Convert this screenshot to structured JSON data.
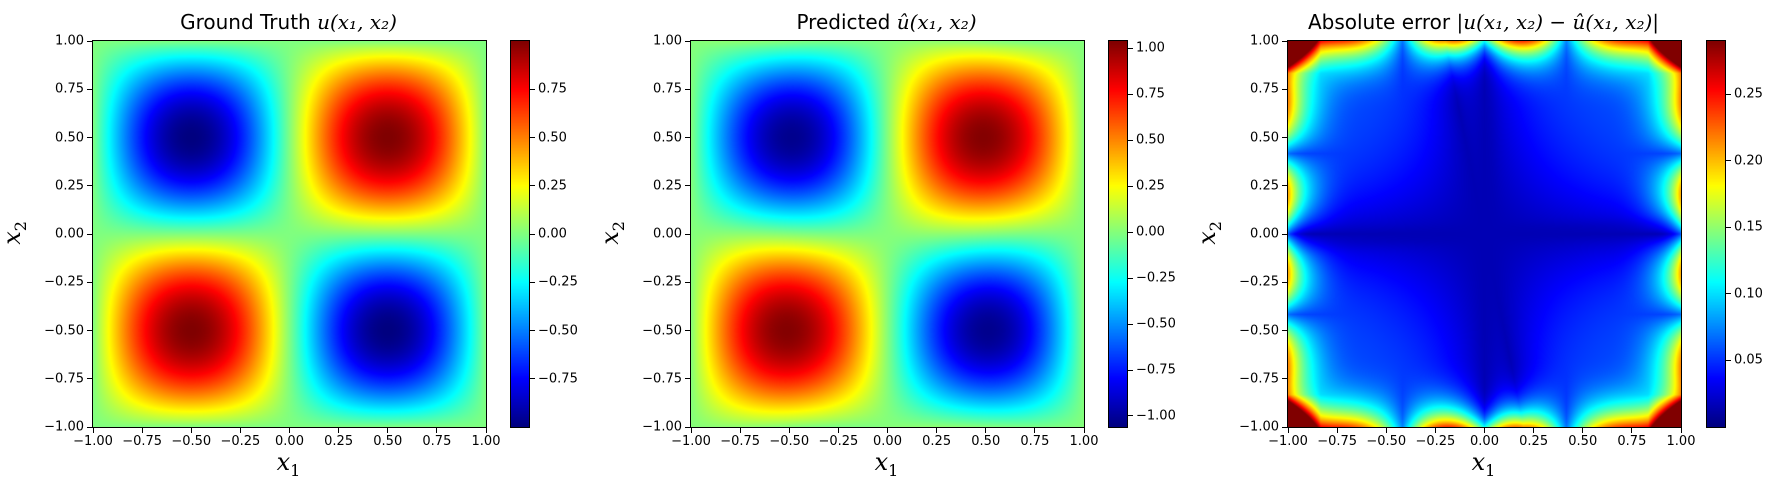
{
  "chart_data": [
    {
      "type": "heatmap",
      "title": "Ground Truth u(x1,x2)",
      "title_parts": {
        "prefix": "Ground Truth ",
        "math": "u(x₁, x₂)"
      },
      "xlabel": "x1",
      "ylabel": "x2",
      "xlim": [
        -1.0,
        1.0
      ],
      "ylim": [
        -1.0,
        1.0
      ],
      "xticks": [
        "−1.00",
        "−0.75",
        "−0.50",
        "−0.25",
        "0.00",
        "0.25",
        "0.50",
        "0.75",
        "1.00"
      ],
      "yticks": [
        "−1.00",
        "−0.75",
        "−0.50",
        "−0.25",
        "0.00",
        "0.25",
        "0.50",
        "0.75",
        "1.00"
      ],
      "function": "u = sin(pi*x1)*sin(pi*x2)",
      "colormap": "jet",
      "clim": [
        -1.0,
        1.0
      ],
      "colorbar_ticks": [
        -0.75,
        -0.5,
        -0.25,
        0.0,
        0.25,
        0.5,
        0.75
      ],
      "colorbar_tick_labels": [
        "−0.75",
        "−0.50",
        "−0.25",
        "0.00",
        "0.25",
        "0.50",
        "0.75"
      ]
    },
    {
      "type": "heatmap",
      "title": "Predicted û(x1,x2)",
      "title_parts": {
        "prefix": "Predicted ",
        "math": "û(x₁, x₂)"
      },
      "xlabel": "x1",
      "ylabel": "x2",
      "xlim": [
        -1.0,
        1.0
      ],
      "ylim": [
        -1.0,
        1.0
      ],
      "xticks": [
        "−1.00",
        "−0.75",
        "−0.50",
        "−0.25",
        "0.00",
        "0.25",
        "0.50",
        "0.75",
        "1.00"
      ],
      "yticks": [
        "−1.00",
        "−0.75",
        "−0.50",
        "−0.25",
        "0.00",
        "0.25",
        "0.50",
        "0.75",
        "1.00"
      ],
      "function": "approximation of sin(pi*x1)*sin(pi*x2)",
      "colormap": "jet",
      "clim": [
        -1.06,
        1.04
      ],
      "colorbar_ticks": [
        -1.0,
        -0.75,
        -0.5,
        -0.25,
        0.0,
        0.25,
        0.5,
        0.75,
        1.0
      ],
      "colorbar_tick_labels": [
        "−1.00",
        "−0.75",
        "−0.50",
        "−0.25",
        "0.00",
        "0.25",
        "0.50",
        "0.75",
        "1.00"
      ]
    },
    {
      "type": "heatmap",
      "title": "Absolute error |u(x1,x2) - û(x1,x2)|",
      "title_parts": {
        "prefix": "Absolute error ",
        "math": "|u(x₁, x₂) − û(x₁, x₂)|"
      },
      "xlabel": "x1",
      "ylabel": "x2",
      "xlim": [
        -1.0,
        1.0
      ],
      "ylim": [
        -1.0,
        1.0
      ],
      "xticks": [
        "−1.00",
        "−0.75",
        "−0.50",
        "−0.25",
        "0.00",
        "0.25",
        "0.50",
        "0.75",
        "1.00"
      ],
      "yticks": [
        "−1.00",
        "−0.75",
        "−0.50",
        "−0.25",
        "0.00",
        "0.25",
        "0.50",
        "0.75",
        "1.00"
      ],
      "function": "absolute error, max near corners ~0.29",
      "colormap": "jet",
      "clim": [
        0.0,
        0.29
      ],
      "colorbar_ticks": [
        0.05,
        0.1,
        0.15,
        0.2,
        0.25
      ],
      "colorbar_tick_labels": [
        "0.05",
        "0.10",
        "0.15",
        "0.20",
        "0.25"
      ]
    }
  ],
  "labels": {
    "x_axis": {
      "base": "x",
      "sub": "1"
    },
    "y_axis": {
      "base": "x",
      "sub": "2"
    }
  }
}
